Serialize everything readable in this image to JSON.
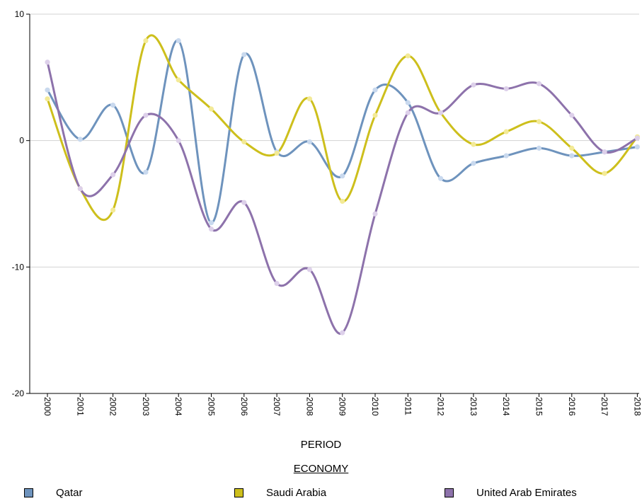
{
  "chart_data": {
    "type": "line",
    "title": "",
    "xlabel": "PERIOD",
    "ylabel": "",
    "ylim": [
      -20,
      10
    ],
    "yticks": [
      10,
      0,
      -10,
      -20
    ],
    "grid": true,
    "legend_title": "ECONOMY",
    "legend_position": "bottom",
    "categories": [
      "2000",
      "2001",
      "2002",
      "2003",
      "2004",
      "2005",
      "2006",
      "2007",
      "2008",
      "2009",
      "2010",
      "2011",
      "2012",
      "2013",
      "2014",
      "2015",
      "2016",
      "2017",
      "2018"
    ],
    "series": [
      {
        "name": "Qatar",
        "color": "#6e93bd",
        "values": [
          4.0,
          0.1,
          2.8,
          -2.5,
          7.9,
          -6.5,
          6.8,
          -0.9,
          -0.1,
          -2.8,
          4.0,
          3.0,
          -3.0,
          -1.8,
          -1.2,
          -0.6,
          -1.2,
          -0.9,
          -0.5
        ]
      },
      {
        "name": "Saudi Arabia",
        "color": "#cdbf1c",
        "values": [
          3.3,
          -3.8,
          -5.5,
          7.9,
          4.8,
          2.5,
          -0.1,
          -1.0,
          3.3,
          -4.8,
          2.0,
          6.7,
          2.2,
          -0.3,
          0.7,
          1.5,
          -0.6,
          -2.6,
          0.3
        ]
      },
      {
        "name": "United Arab Emirates",
        "color": "#8d72ab",
        "values": [
          6.2,
          -3.8,
          -2.7,
          2.0,
          0.0,
          -7.0,
          -4.9,
          -11.3,
          -10.2,
          -15.2,
          -5.8,
          2.2,
          2.2,
          4.4,
          4.1,
          4.5,
          2.0,
          -0.9,
          0.2
        ]
      }
    ]
  }
}
